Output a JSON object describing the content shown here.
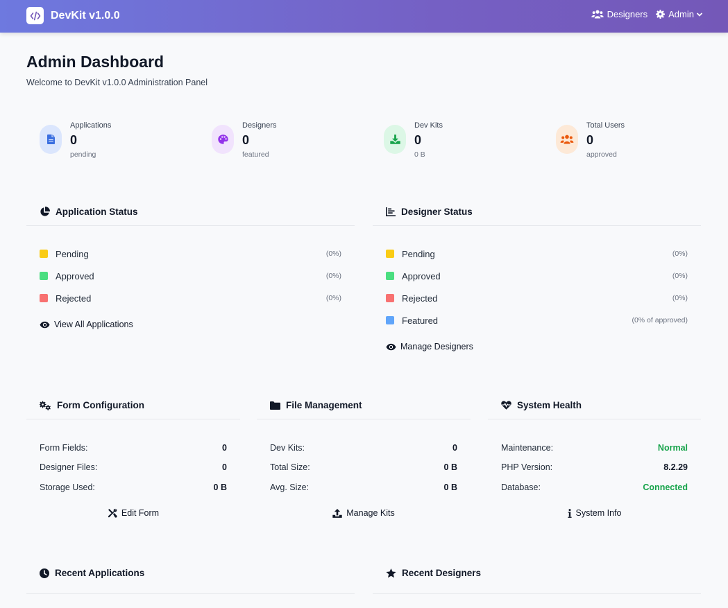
{
  "navbar": {
    "brand": "DevKit v1.0.0",
    "designers_link": "Designers",
    "admin_menu": "Admin"
  },
  "header": {
    "title": "Admin Dashboard",
    "subtitle": "Welcome to DevKit v1.0.0 Administration Panel"
  },
  "stats": [
    {
      "label": "Applications",
      "value": "0",
      "sub": "pending",
      "icon": "file-icon",
      "color": "#3b6fe0",
      "bg": "#dbe6fd"
    },
    {
      "label": "Designers",
      "value": "0",
      "sub": "featured",
      "icon": "palette-icon",
      "color": "#9333ea",
      "bg": "#f1e3fd"
    },
    {
      "label": "Dev Kits",
      "value": "0",
      "sub": "0 B",
      "icon": "download-icon",
      "color": "#16a34a",
      "bg": "#dcf7e6"
    },
    {
      "label": "Total Users",
      "value": "0",
      "sub": "approved",
      "icon": "users-icon",
      "color": "#ea580c",
      "bg": "#fde9d7"
    }
  ],
  "application_status": {
    "title": "Application Status",
    "rows": [
      {
        "label": "Pending",
        "pct": "(0%)",
        "color": "#facc15"
      },
      {
        "label": "Approved",
        "pct": "(0%)",
        "color": "#4ade80"
      },
      {
        "label": "Rejected",
        "pct": "(0%)",
        "color": "#f87171"
      }
    ],
    "link": "View All Applications"
  },
  "designer_status": {
    "title": "Designer Status",
    "rows": [
      {
        "label": "Pending",
        "pct": "(0%)",
        "color": "#facc15"
      },
      {
        "label": "Approved",
        "pct": "(0%)",
        "color": "#4ade80"
      },
      {
        "label": "Rejected",
        "pct": "(0%)",
        "color": "#f87171"
      },
      {
        "label": "Featured",
        "pct": "(0% of approved)",
        "color": "#60a5fa"
      }
    ],
    "link": "Manage Designers"
  },
  "form_configuration": {
    "title": "Form Configuration",
    "rows": [
      {
        "key": "Form Fields:",
        "value": "0"
      },
      {
        "key": "Designer Files:",
        "value": "0"
      },
      {
        "key": "Storage Used:",
        "value": "0 B"
      }
    ],
    "link": "Edit Form"
  },
  "file_management": {
    "title": "File Management",
    "rows": [
      {
        "key": "Dev Kits:",
        "value": "0"
      },
      {
        "key": "Total Size:",
        "value": "0 B"
      },
      {
        "key": "Avg. Size:",
        "value": "0 B"
      }
    ],
    "link": "Manage Kits"
  },
  "system_health": {
    "title": "System Health",
    "rows": [
      {
        "key": "Maintenance:",
        "value": "Normal",
        "green": true
      },
      {
        "key": "PHP Version:",
        "value": "8.2.29",
        "green": false
      },
      {
        "key": "Database:",
        "value": "Connected",
        "green": true
      }
    ],
    "link": "System Info"
  },
  "recent_applications": {
    "title": "Recent Applications"
  },
  "recent_designers": {
    "title": "Recent Designers"
  }
}
